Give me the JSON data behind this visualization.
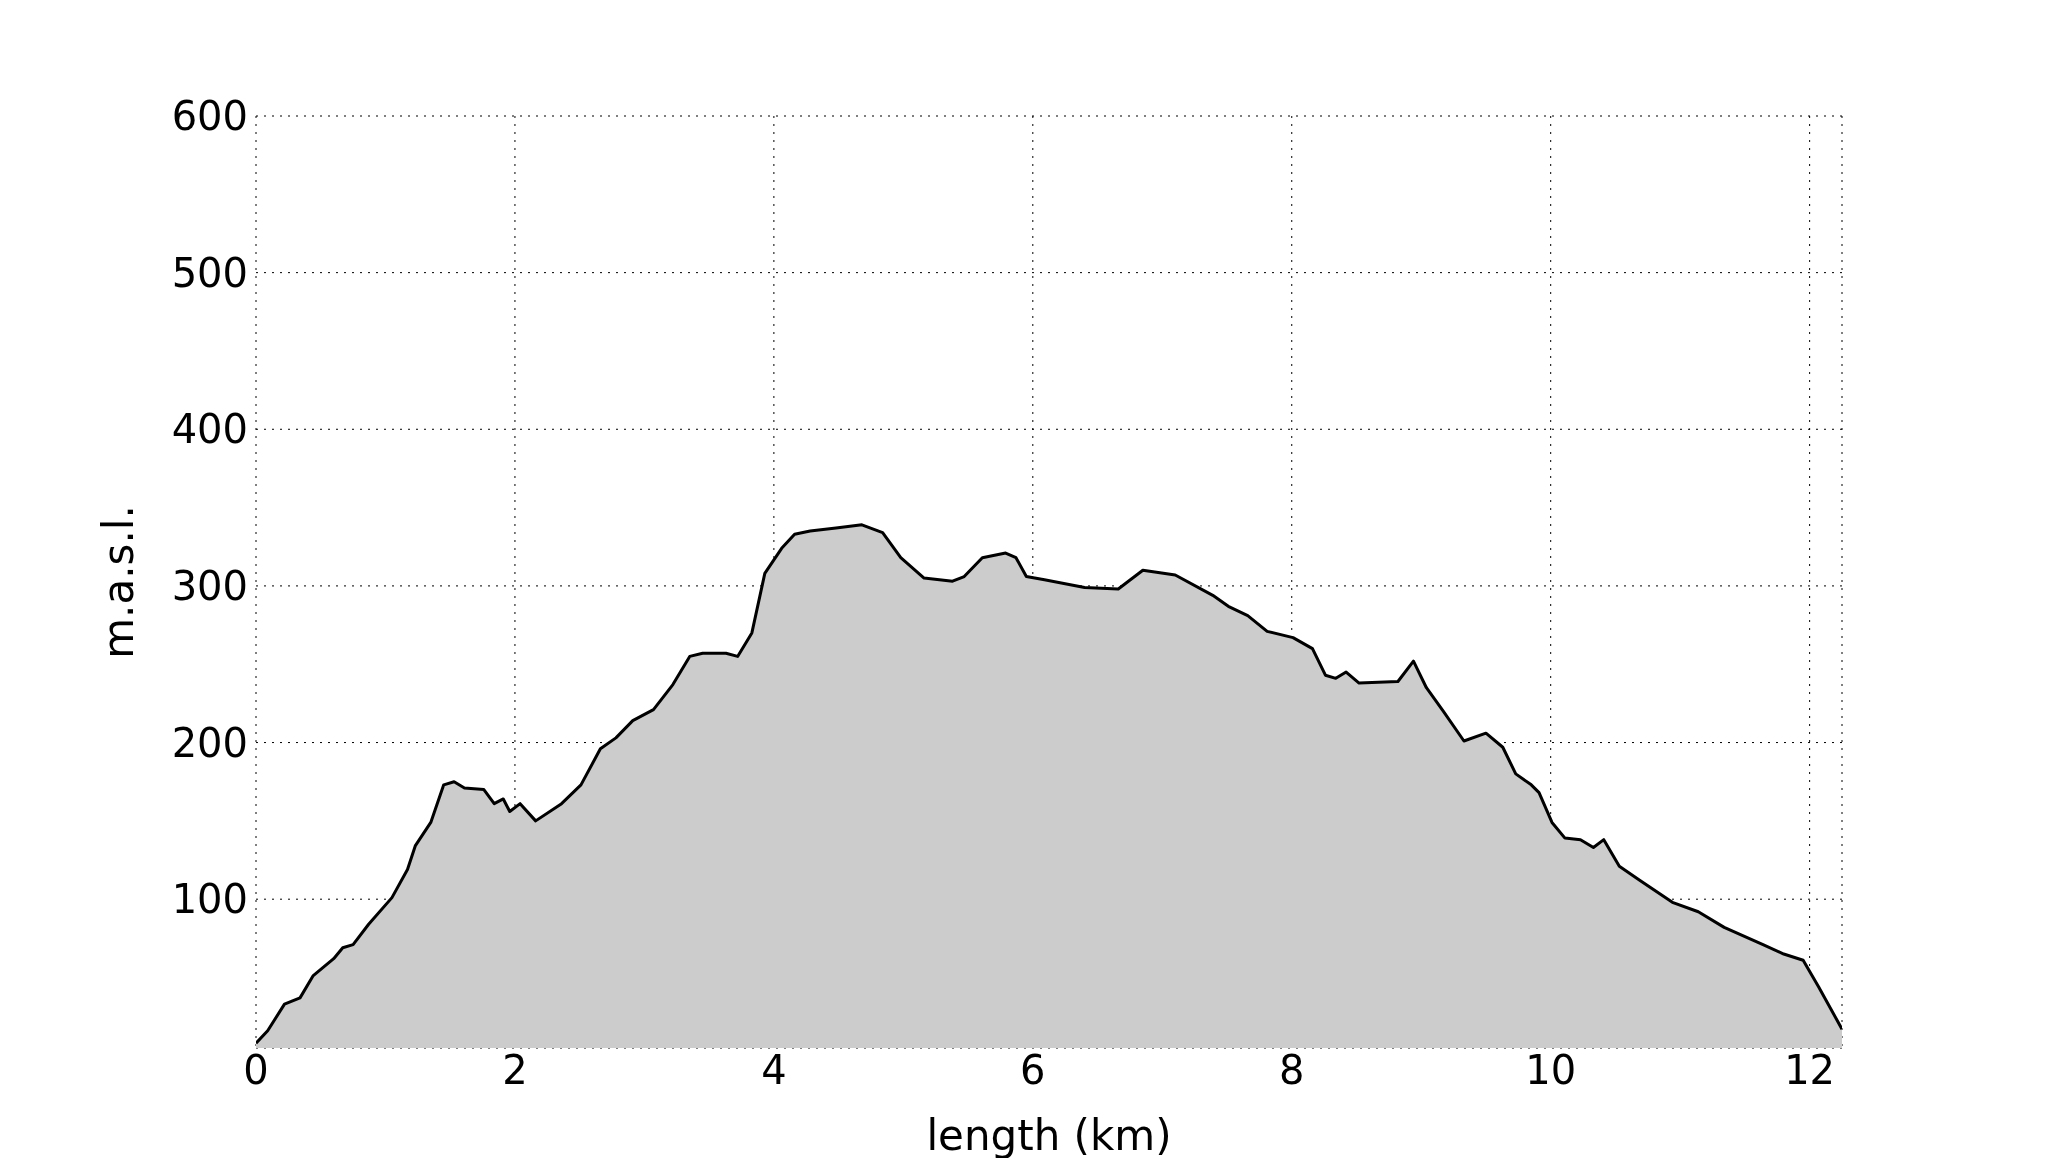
{
  "chart_data": {
    "type": "area",
    "xlabel": "length (km)",
    "ylabel": "m.a.s.l.",
    "x": [
      0,
      0.09,
      0.22,
      0.34,
      0.44,
      0.6,
      0.67,
      0.75,
      0.87,
      1.05,
      1.17,
      1.23,
      1.35,
      1.45,
      1.53,
      1.61,
      1.76,
      1.84,
      1.91,
      1.96,
      2.04,
      2.16,
      2.36,
      2.51,
      2.66,
      2.78,
      2.91,
      3.07,
      3.22,
      3.35,
      3.45,
      3.63,
      3.72,
      3.83,
      3.93,
      4.06,
      4.16,
      4.28,
      4.48,
      4.68,
      4.84,
      4.98,
      5.16,
      5.38,
      5.47,
      5.61,
      5.79,
      5.87,
      5.95,
      6.09,
      6.4,
      6.66,
      6.85,
      7.1,
      7.39,
      7.51,
      7.66,
      7.81,
      8.01,
      8.16,
      8.26,
      8.34,
      8.42,
      8.52,
      8.82,
      8.94,
      9.04,
      9.17,
      9.33,
      9.5,
      9.63,
      9.73,
      9.85,
      9.91,
      10.01,
      10.11,
      10.23,
      10.33,
      10.41,
      10.53,
      10.69,
      10.94,
      11.14,
      11.34,
      11.64,
      11.8,
      11.95,
      12.07,
      12.25
    ],
    "series": [
      {
        "color": "#cccccc",
        "values": [
          8,
          16,
          33,
          37,
          51,
          62,
          69,
          71,
          84,
          101,
          119,
          134,
          149,
          173,
          175,
          171,
          170,
          161,
          164,
          156,
          161,
          150,
          161,
          173,
          196,
          203,
          214,
          221,
          237,
          255,
          257,
          257,
          255,
          270,
          308,
          324,
          333,
          335,
          337,
          339,
          334,
          318,
          305,
          303,
          306,
          318,
          321,
          318,
          306,
          304,
          299,
          298,
          310,
          307,
          294,
          287,
          281,
          271,
          267,
          260,
          243,
          241,
          245,
          238,
          239,
          252,
          235,
          220,
          201,
          206,
          197,
          180,
          173,
          168,
          149,
          139,
          138,
          133,
          138,
          121,
          112,
          98,
          92,
          82,
          71,
          65,
          61,
          44,
          17
        ]
      }
    ],
    "xlim": [
      0,
      12.25
    ],
    "xticks": [
      0,
      2,
      4,
      6,
      8,
      10,
      12
    ],
    "ylim": [
      5,
      600
    ],
    "yticks": [
      100,
      200,
      300,
      400,
      500,
      600
    ],
    "grid": true
  }
}
